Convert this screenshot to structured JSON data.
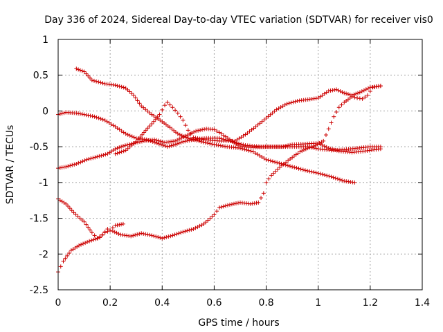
{
  "chart_data": {
    "type": "scatter",
    "title": "Day 336 of 2024, Sidereal Day-to-day VTEC variation (SDTVAR) for receiver vis0",
    "xlabel": "GPS time / hours",
    "ylabel": "SDTVAR / TECUs",
    "xlim": [
      0,
      1.4
    ],
    "ylim": [
      -2.5,
      1
    ],
    "x_ticks": [
      "0",
      "0.2",
      "0.4",
      "0.6",
      "0.8",
      "1",
      "1.2",
      "1.4"
    ],
    "y_ticks": [
      "1",
      "0.5",
      "0",
      "-0.5",
      "-1",
      "-1.5",
      "-2",
      "-2.5"
    ],
    "grid": true,
    "marker": "+",
    "marker_color": "#cc0000",
    "series": [
      {
        "points": [
          [
            0,
            -2.25
          ],
          [
            0.02,
            -2.1
          ],
          [
            0.05,
            -1.95
          ],
          [
            0.08,
            -1.88
          ],
          [
            0.12,
            -1.82
          ],
          [
            0.16,
            -1.77
          ],
          [
            0.18,
            -1.7
          ],
          [
            0.2,
            -1.67
          ],
          [
            0.22,
            -1.6
          ],
          [
            0.25,
            -1.58
          ]
        ]
      },
      {
        "points": [
          [
            0.21,
            -1.68
          ],
          [
            0.24,
            -1.73
          ],
          [
            0.28,
            -1.75
          ],
          [
            0.32,
            -1.71
          ],
          [
            0.36,
            -1.74
          ],
          [
            0.4,
            -1.78
          ],
          [
            0.44,
            -1.74
          ],
          [
            0.48,
            -1.69
          ],
          [
            0.52,
            -1.65
          ],
          [
            0.56,
            -1.58
          ],
          [
            0.6,
            -1.45
          ],
          [
            0.62,
            -1.35
          ],
          [
            0.66,
            -1.31
          ],
          [
            0.7,
            -1.28
          ],
          [
            0.74,
            -1.3
          ],
          [
            0.77,
            -1.28
          ],
          [
            0.79,
            -1.15
          ],
          [
            0.8,
            -1.0
          ],
          [
            0.82,
            -0.9
          ],
          [
            0.86,
            -0.76
          ],
          [
            0.9,
            -0.65
          ],
          [
            0.93,
            -0.57
          ],
          [
            0.96,
            -0.52
          ],
          [
            0.99,
            -0.48
          ],
          [
            1.02,
            -0.42
          ],
          [
            1.04,
            -0.25
          ],
          [
            1.06,
            -0.08
          ],
          [
            1.08,
            0.05
          ],
          [
            1.1,
            0.12
          ],
          [
            1.13,
            0.2
          ],
          [
            1.15,
            0.18
          ],
          [
            1.17,
            0.17
          ],
          [
            1.19,
            0.22
          ],
          [
            1.21,
            0.33
          ],
          [
            1.24,
            0.35
          ]
        ]
      },
      {
        "points": [
          [
            0,
            -1.23
          ],
          [
            0.03,
            -1.3
          ],
          [
            0.06,
            -1.42
          ],
          [
            0.1,
            -1.55
          ],
          [
            0.13,
            -1.7
          ],
          [
            0.15,
            -1.78
          ],
          [
            0.17,
            -1.73
          ],
          [
            0.19,
            -1.65
          ]
        ]
      },
      {
        "points": [
          [
            0.07,
            0.59
          ],
          [
            0.1,
            0.55
          ],
          [
            0.13,
            0.43
          ],
          [
            0.18,
            0.38
          ],
          [
            0.22,
            0.36
          ],
          [
            0.26,
            0.32
          ],
          [
            0.29,
            0.22
          ],
          [
            0.32,
            0.07
          ],
          [
            0.36,
            -0.05
          ],
          [
            0.4,
            -0.15
          ],
          [
            0.43,
            -0.23
          ],
          [
            0.46,
            -0.32
          ],
          [
            0.5,
            -0.38
          ],
          [
            0.55,
            -0.43
          ],
          [
            0.6,
            -0.47
          ],
          [
            0.65,
            -0.5
          ],
          [
            0.7,
            -0.52
          ],
          [
            0.75,
            -0.57
          ],
          [
            0.8,
            -0.68
          ],
          [
            0.85,
            -0.73
          ],
          [
            0.9,
            -0.78
          ],
          [
            0.95,
            -0.83
          ],
          [
            1.0,
            -0.87
          ],
          [
            1.05,
            -0.92
          ],
          [
            1.1,
            -0.98
          ],
          [
            1.14,
            -1.0
          ]
        ]
      },
      {
        "points": [
          [
            0,
            -0.05
          ],
          [
            0.03,
            -0.02
          ],
          [
            0.07,
            -0.03
          ],
          [
            0.1,
            -0.05
          ],
          [
            0.14,
            -0.08
          ],
          [
            0.18,
            -0.13
          ],
          [
            0.22,
            -0.22
          ],
          [
            0.26,
            -0.32
          ],
          [
            0.3,
            -0.38
          ],
          [
            0.34,
            -0.4
          ],
          [
            0.38,
            -0.45
          ],
          [
            0.42,
            -0.5
          ],
          [
            0.45,
            -0.47
          ],
          [
            0.48,
            -0.43
          ],
          [
            0.52,
            -0.4
          ],
          [
            0.57,
            -0.38
          ],
          [
            0.62,
            -0.38
          ],
          [
            0.67,
            -0.43
          ],
          [
            0.72,
            -0.48
          ],
          [
            0.78,
            -0.5
          ],
          [
            0.84,
            -0.5
          ],
          [
            0.9,
            -0.5
          ],
          [
            0.96,
            -0.5
          ],
          [
            1.0,
            -0.53
          ],
          [
            1.05,
            -0.55
          ],
          [
            1.1,
            -0.54
          ],
          [
            1.15,
            -0.52
          ],
          [
            1.2,
            -0.5
          ],
          [
            1.24,
            -0.5
          ]
        ]
      },
      {
        "points": [
          [
            0,
            -0.8
          ],
          [
            0.03,
            -0.78
          ],
          [
            0.07,
            -0.74
          ],
          [
            0.11,
            -0.68
          ],
          [
            0.15,
            -0.64
          ],
          [
            0.19,
            -0.6
          ],
          [
            0.22,
            -0.53
          ],
          [
            0.25,
            -0.49
          ],
          [
            0.29,
            -0.45
          ],
          [
            0.33,
            -0.42
          ],
          [
            0.37,
            -0.4
          ],
          [
            0.41,
            -0.44
          ],
          [
            0.45,
            -0.42
          ],
          [
            0.49,
            -0.35
          ],
          [
            0.53,
            -0.28
          ],
          [
            0.57,
            -0.25
          ],
          [
            0.6,
            -0.26
          ],
          [
            0.62,
            -0.3
          ],
          [
            0.66,
            -0.4
          ],
          [
            0.7,
            -0.5
          ],
          [
            0.75,
            -0.51
          ],
          [
            0.8,
            -0.5
          ],
          [
            0.86,
            -0.5
          ],
          [
            0.9,
            -0.47
          ],
          [
            0.95,
            -0.46
          ],
          [
            1.0,
            -0.45
          ],
          [
            1.04,
            -0.52
          ],
          [
            1.08,
            -0.56
          ],
          [
            1.13,
            -0.58
          ],
          [
            1.18,
            -0.56
          ],
          [
            1.24,
            -0.53
          ]
        ]
      },
      {
        "points": [
          [
            0.22,
            -0.6
          ],
          [
            0.26,
            -0.55
          ],
          [
            0.3,
            -0.43
          ],
          [
            0.33,
            -0.3
          ],
          [
            0.36,
            -0.18
          ],
          [
            0.39,
            -0.05
          ],
          [
            0.41,
            0.08
          ],
          [
            0.42,
            0.12
          ],
          [
            0.44,
            0.05
          ],
          [
            0.46,
            -0.03
          ],
          [
            0.48,
            -0.13
          ],
          [
            0.5,
            -0.27
          ],
          [
            0.52,
            -0.37
          ],
          [
            0.56,
            -0.4
          ],
          [
            0.62,
            -0.42
          ],
          [
            0.68,
            -0.42
          ],
          [
            0.72,
            -0.33
          ],
          [
            0.76,
            -0.22
          ],
          [
            0.8,
            -0.1
          ],
          [
            0.84,
            0.02
          ],
          [
            0.88,
            0.1
          ],
          [
            0.92,
            0.14
          ],
          [
            0.96,
            0.16
          ],
          [
            1.0,
            0.18
          ],
          [
            1.04,
            0.28
          ],
          [
            1.07,
            0.3
          ],
          [
            1.1,
            0.25
          ],
          [
            1.13,
            0.22
          ],
          [
            1.16,
            0.26
          ],
          [
            1.2,
            0.33
          ],
          [
            1.24,
            0.35
          ]
        ]
      }
    ]
  }
}
